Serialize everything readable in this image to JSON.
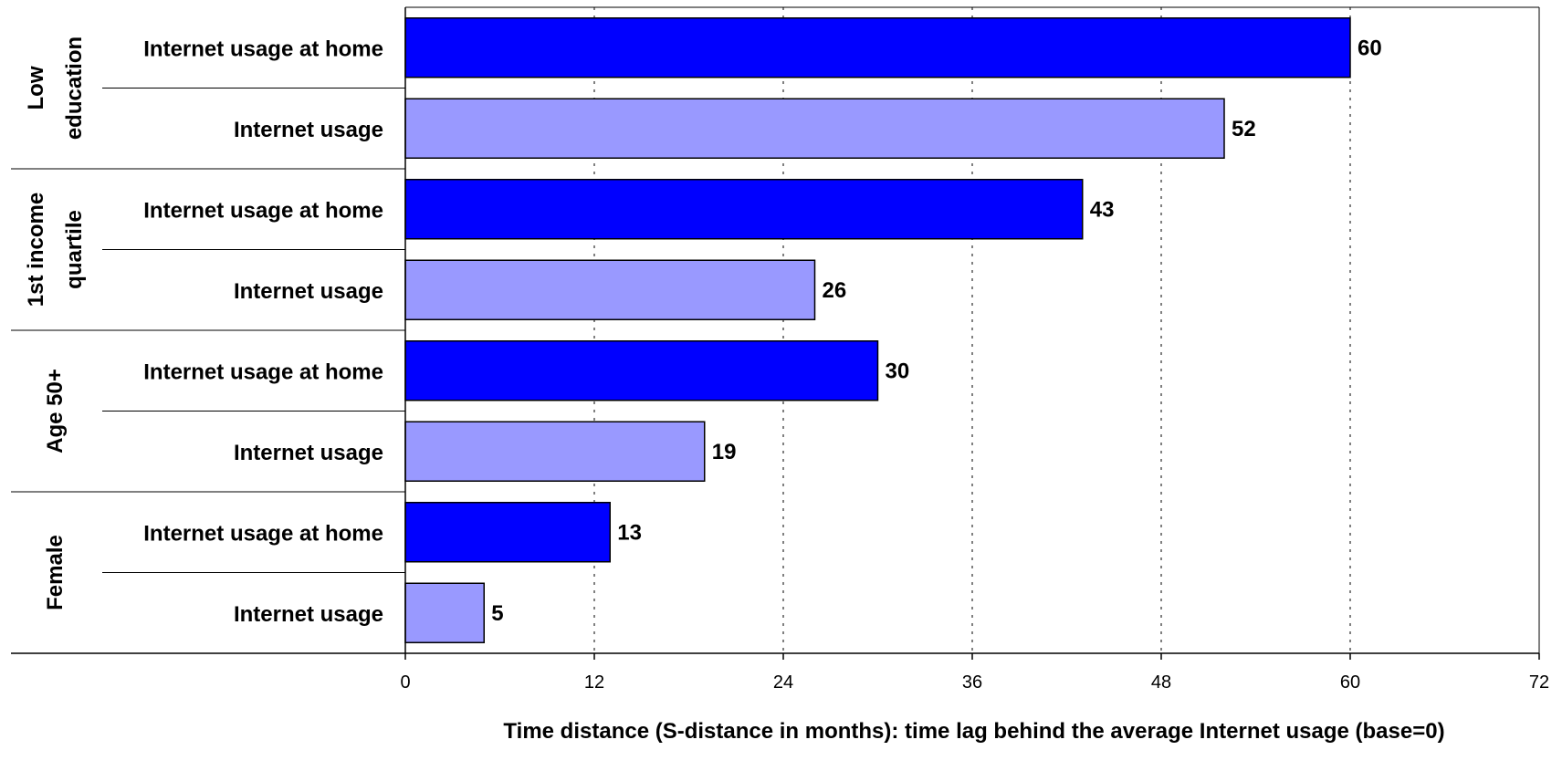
{
  "chart_data": {
    "type": "bar",
    "orientation": "horizontal",
    "xlabel": "Time distance (S-distance in months): time lag behind the average Internet usage (base=0)",
    "xlim": [
      0,
      72
    ],
    "xticks": [
      0,
      12,
      24,
      36,
      48,
      60,
      72
    ],
    "grid": "vertical dotted",
    "series": [
      {
        "name": "Internet usage at home",
        "color": "#0000ff"
      },
      {
        "name": "Internet usage",
        "color": "#9999ff"
      }
    ],
    "groups": [
      {
        "label": [
          "Low",
          "education"
        ],
        "bars": [
          {
            "label": "Internet usage at home",
            "series": 0,
            "value": 60
          },
          {
            "label": "Internet usage",
            "series": 1,
            "value": 52
          }
        ]
      },
      {
        "label": [
          "1st income",
          "quartile"
        ],
        "bars": [
          {
            "label": "Internet usage at home",
            "series": 0,
            "value": 43
          },
          {
            "label": "Internet usage",
            "series": 1,
            "value": 26
          }
        ]
      },
      {
        "label": [
          "Age 50+"
        ],
        "bars": [
          {
            "label": "Internet usage at home",
            "series": 0,
            "value": 30
          },
          {
            "label": "Internet usage",
            "series": 1,
            "value": 19
          }
        ]
      },
      {
        "label": [
          "Female"
        ],
        "bars": [
          {
            "label": "Internet usage at home",
            "series": 0,
            "value": 13
          },
          {
            "label": "Internet usage",
            "series": 1,
            "value": 5
          }
        ]
      }
    ]
  }
}
